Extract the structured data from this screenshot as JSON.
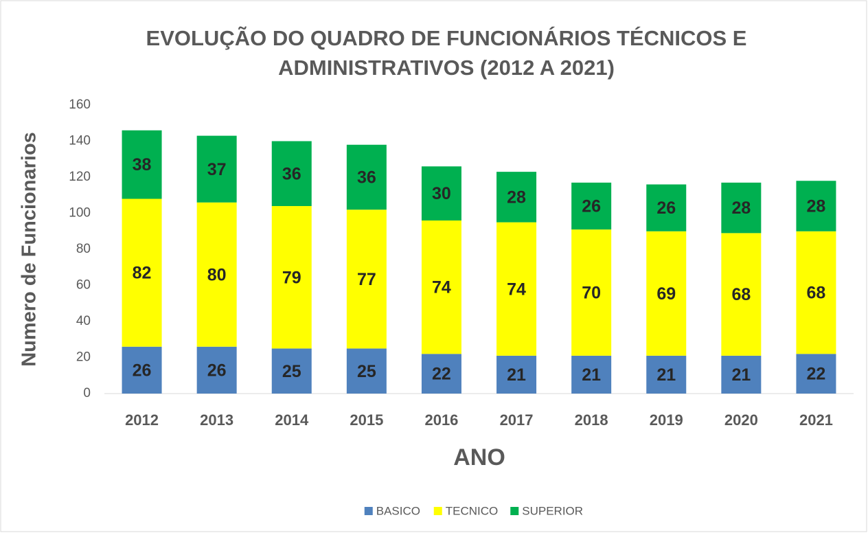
{
  "chart_data": {
    "type": "stacked_bar",
    "title": [
      "EVOLUÇÃO DO QUADRO DE FUNCIONÁRIOS TÉCNICOS E",
      "ADMINISTRATIVOS (2012 A 2021)"
    ],
    "x_label": "ANO",
    "y_label": "Numero de Funcionarios",
    "categories": [
      "2012",
      "2013",
      "2014",
      "2015",
      "2016",
      "2017",
      "2018",
      "2019",
      "2020",
      "2021"
    ],
    "series": [
      {
        "name": "BASICO",
        "color": "#4f81bd",
        "values": [
          26,
          26,
          25,
          25,
          22,
          21,
          21,
          21,
          21,
          22
        ]
      },
      {
        "name": "TECNICO",
        "color": "#ffff00",
        "values": [
          82,
          80,
          79,
          77,
          74,
          74,
          70,
          69,
          68,
          68
        ]
      },
      {
        "name": "SUPERIOR",
        "color": "#00b050",
        "values": [
          38,
          37,
          36,
          36,
          30,
          28,
          26,
          26,
          28,
          28
        ]
      }
    ],
    "ylim": [
      0,
      160
    ],
    "yticks": [
      0,
      20,
      40,
      60,
      80,
      100,
      120,
      140,
      160
    ],
    "grid": false,
    "legend": "bottom"
  }
}
